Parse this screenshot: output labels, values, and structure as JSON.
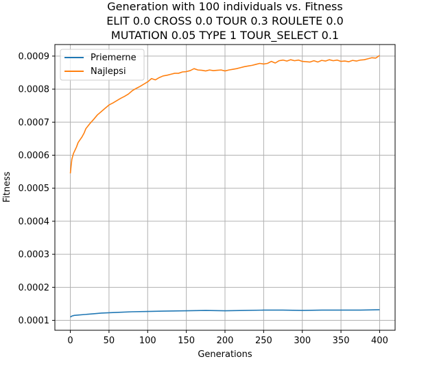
{
  "chart_data": {
    "type": "line",
    "title_lines": [
      "Generation with 100 individuals vs. Fitness",
      "ELIT 0.0 CROSS 0.0 TOUR 0.3 ROULETE 0.0",
      "MUTATION 0.05 TYPE 1 TOUR_SELECT 0.1"
    ],
    "xlabel": "Generations",
    "ylabel": "Fitness",
    "xlim": [
      -20,
      420
    ],
    "ylim": [
      7e-05,
      0.000935
    ],
    "x_ticks": [
      0,
      50,
      100,
      150,
      200,
      250,
      300,
      350,
      400
    ],
    "x_tick_labels": [
      "0",
      "50",
      "100",
      "150",
      "200",
      "250",
      "300",
      "350",
      "400"
    ],
    "y_ticks": [
      0.0001,
      0.0002,
      0.0003,
      0.0004,
      0.0005,
      0.0006,
      0.0007,
      0.0008,
      0.0009
    ],
    "y_tick_labels": [
      "0.0001",
      "0.0002",
      "0.0003",
      "0.0004",
      "0.0005",
      "0.0006",
      "0.0007",
      "0.0008",
      "0.0009"
    ],
    "grid": true,
    "legend_position": "top-left",
    "series": [
      {
        "name": "Priemerne",
        "color": "#1f77b4",
        "x": [
          0,
          2,
          5,
          10,
          20,
          30,
          40,
          50,
          60,
          80,
          100,
          120,
          150,
          175,
          200,
          225,
          250,
          275,
          300,
          325,
          350,
          375,
          400
        ],
        "y": [
          0.00011,
          0.000113,
          0.000115,
          0.000116,
          0.000118,
          0.00012,
          0.000122,
          0.000123,
          0.000124,
          0.000126,
          0.000127,
          0.000128,
          0.000129,
          0.00013,
          0.000129,
          0.00013,
          0.000131,
          0.000131,
          0.00013,
          0.000131,
          0.000131,
          0.000131,
          0.000132
        ]
      },
      {
        "name": "Najlepsi",
        "color": "#ff7f0e",
        "x": [
          0,
          1,
          2,
          4,
          6,
          8,
          10,
          12,
          15,
          18,
          20,
          25,
          30,
          35,
          40,
          45,
          50,
          55,
          60,
          65,
          70,
          75,
          80,
          85,
          90,
          95,
          100,
          105,
          110,
          115,
          120,
          125,
          130,
          135,
          140,
          145,
          150,
          155,
          160,
          165,
          170,
          175,
          180,
          185,
          190,
          195,
          200,
          205,
          210,
          215,
          220,
          225,
          230,
          235,
          240,
          245,
          250,
          255,
          260,
          265,
          270,
          275,
          280,
          285,
          290,
          295,
          300,
          305,
          310,
          315,
          320,
          325,
          330,
          335,
          340,
          345,
          350,
          355,
          360,
          365,
          370,
          375,
          380,
          385,
          390,
          395,
          400
        ],
        "y": [
          0.000545,
          0.000568,
          0.000588,
          0.000605,
          0.000615,
          0.000625,
          0.000638,
          0.000645,
          0.000655,
          0.000668,
          0.00068,
          0.000695,
          0.000708,
          0.000722,
          0.000732,
          0.000742,
          0.000752,
          0.000758,
          0.000765,
          0.000772,
          0.000778,
          0.000785,
          0.000795,
          0.000802,
          0.000808,
          0.000815,
          0.000822,
          0.000832,
          0.000828,
          0.000835,
          0.00084,
          0.000842,
          0.000845,
          0.000848,
          0.000848,
          0.000852,
          0.000853,
          0.000856,
          0.000862,
          0.000858,
          0.000857,
          0.000855,
          0.000858,
          0.000856,
          0.000857,
          0.000858,
          0.000855,
          0.000858,
          0.00086,
          0.000862,
          0.000865,
          0.000868,
          0.00087,
          0.000872,
          0.000875,
          0.000878,
          0.000876,
          0.000878,
          0.000884,
          0.000879,
          0.000886,
          0.000888,
          0.000885,
          0.000889,
          0.000886,
          0.000888,
          0.000884,
          0.000883,
          0.000882,
          0.000886,
          0.000882,
          0.000887,
          0.000885,
          0.000889,
          0.000886,
          0.000888,
          0.000884,
          0.000885,
          0.000883,
          0.000887,
          0.000885,
          0.000888,
          0.000889,
          0.000892,
          0.000895,
          0.000894,
          0.000902
        ]
      }
    ]
  }
}
